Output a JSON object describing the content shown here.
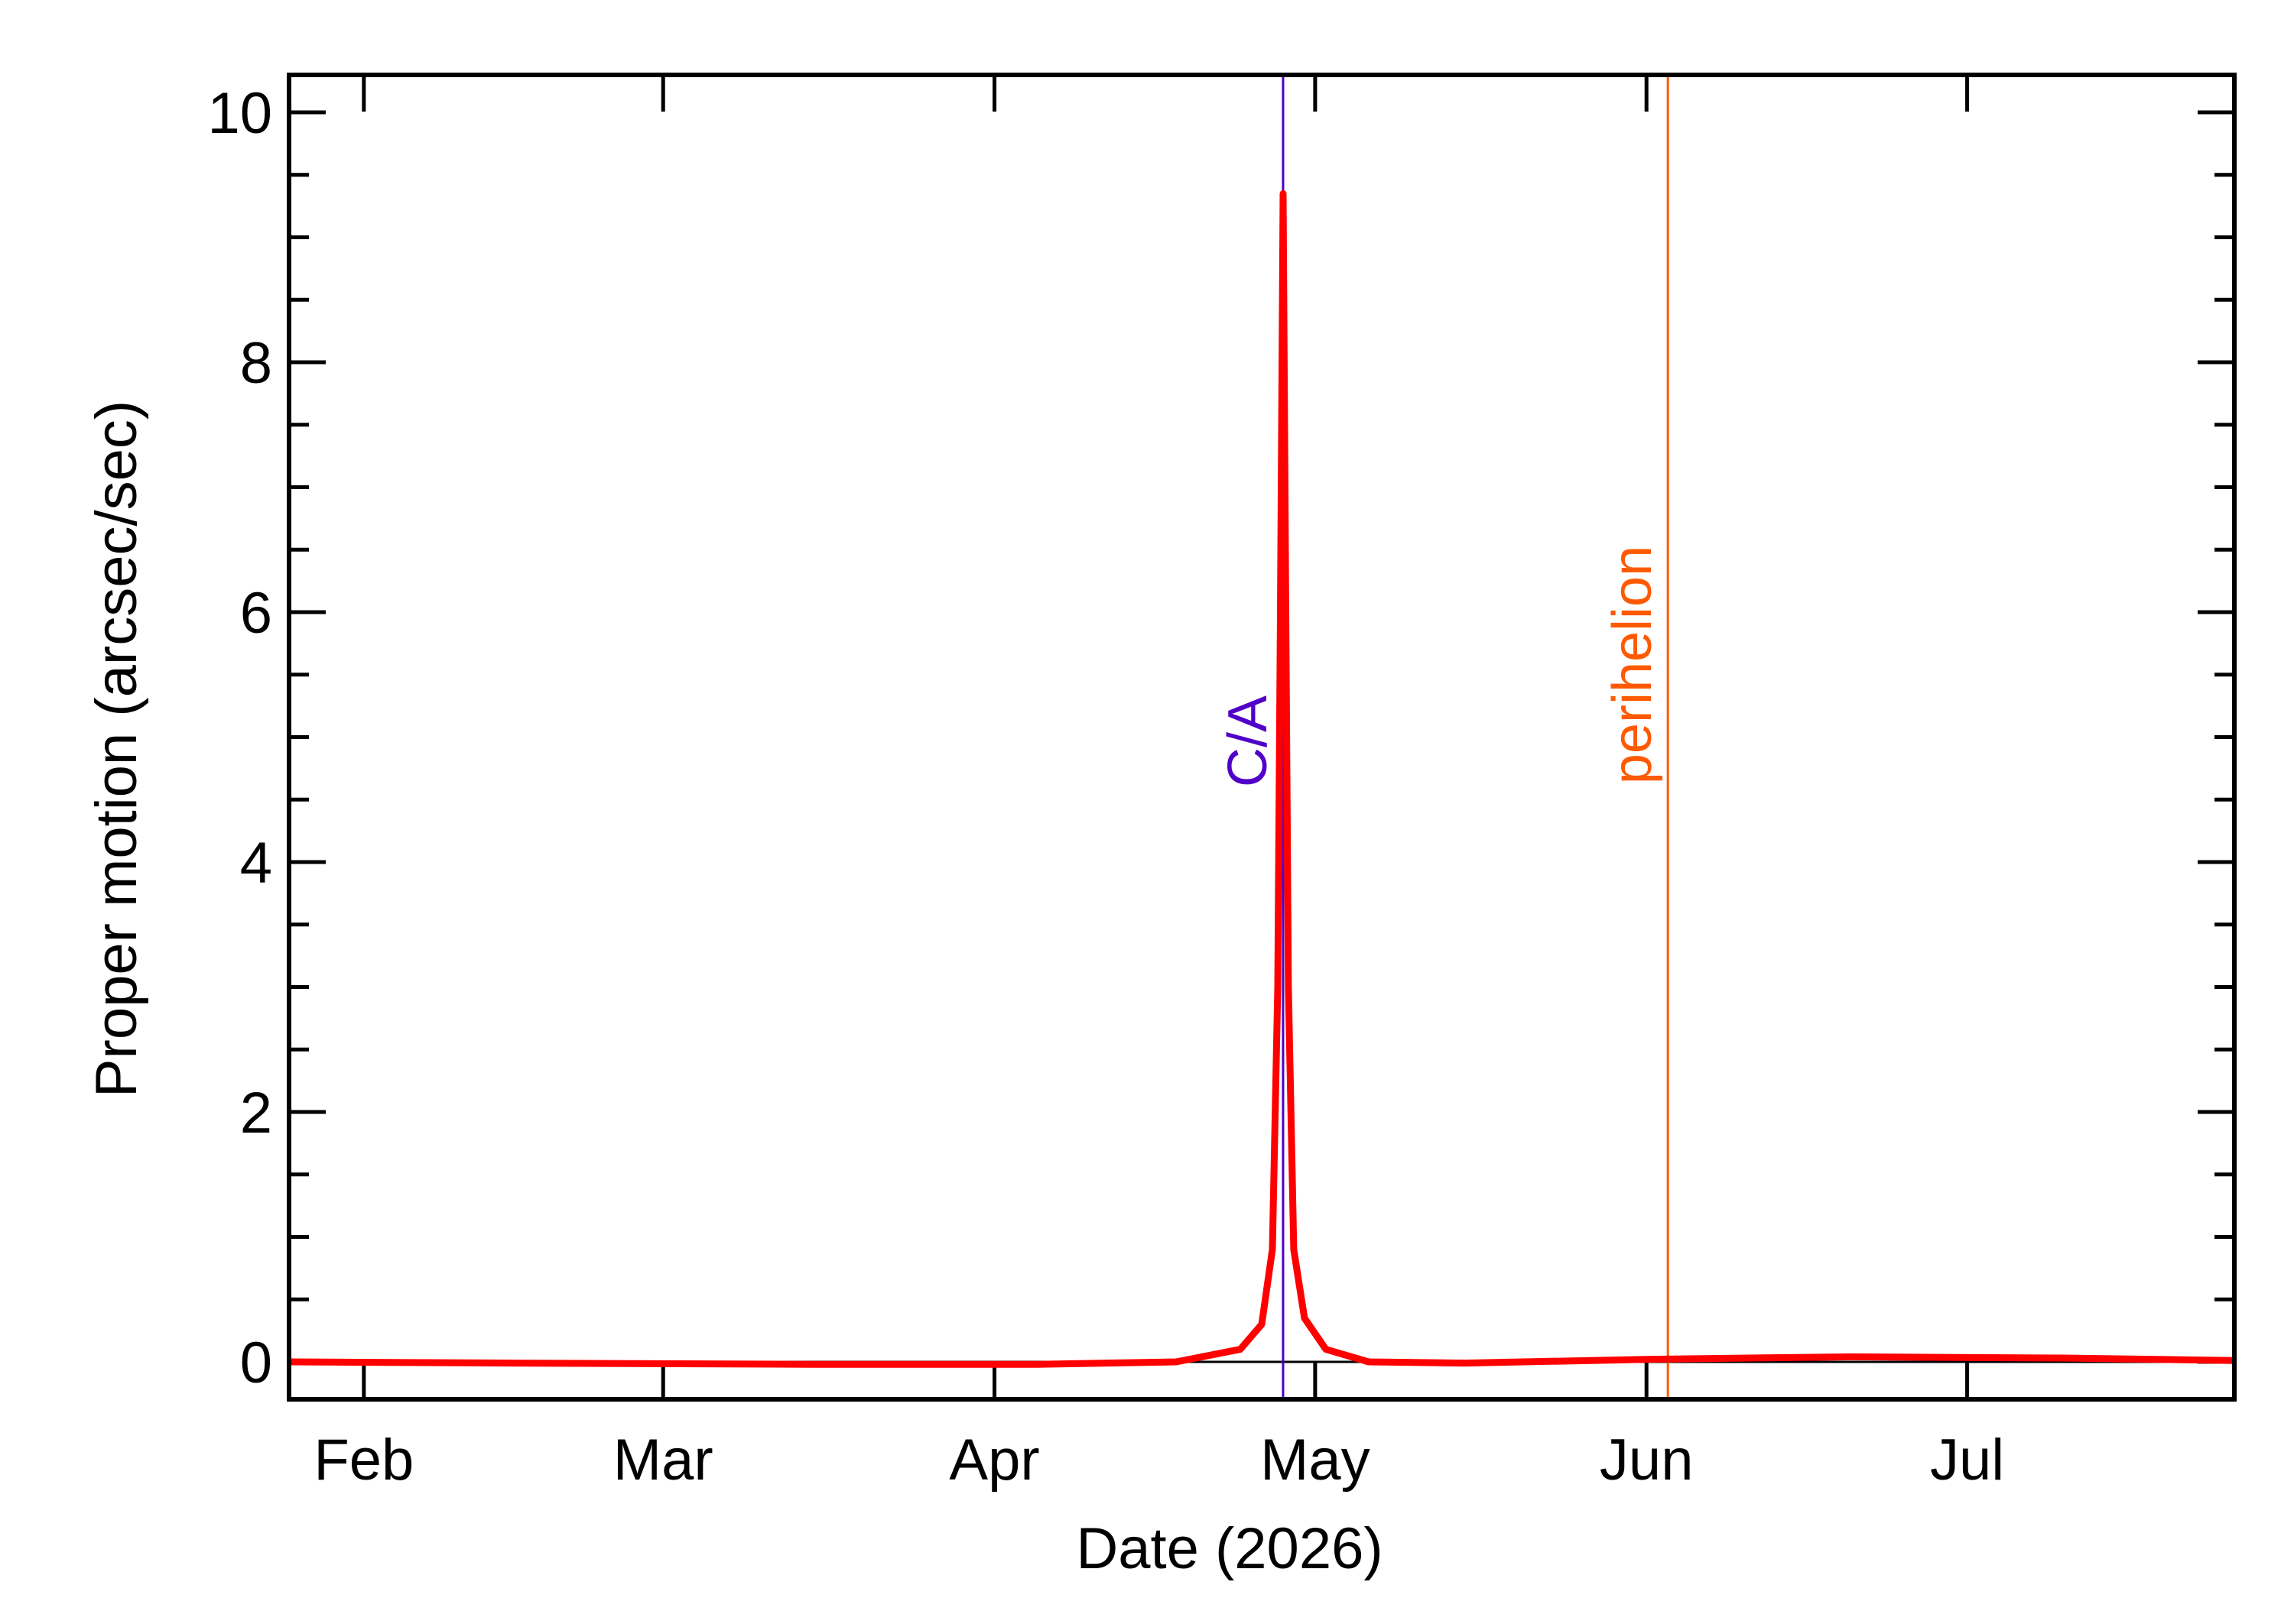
{
  "chart_data": {
    "type": "line",
    "title": "",
    "xlabel": "Date (2026)",
    "ylabel": "Proper motion (arcsec/sec)",
    "x_ticks": [
      {
        "label": "Feb",
        "date": "2026-02-01"
      },
      {
        "label": "Mar",
        "date": "2026-03-01"
      },
      {
        "label": "Apr",
        "date": "2026-04-01"
      },
      {
        "label": "May",
        "date": "2026-05-01"
      },
      {
        "label": "Jun",
        "date": "2026-06-01"
      },
      {
        "label": "Jul",
        "date": "2026-07-01"
      }
    ],
    "xlim": [
      "2026-01-25",
      "2026-07-26"
    ],
    "ylim": [
      -0.3,
      10.3
    ],
    "y_ticks": [
      0,
      2,
      4,
      6,
      8,
      10
    ],
    "grid": false,
    "colors": {
      "series": "#ff0000",
      "ca_line": "#5000c8",
      "perihelion_line": "#ff5a00",
      "axis": "#000000"
    },
    "annotations": [
      {
        "label": "C/A",
        "date": "2026-04-28",
        "color": "#5000c8"
      },
      {
        "label": "perihelion",
        "date": "2026-06-03",
        "color": "#ff5a00"
      }
    ],
    "series": [
      {
        "color": "#ff0000",
        "points": [
          {
            "x": "2026-01-25",
            "y": 0.0
          },
          {
            "x": "2026-02-15",
            "y": -0.01
          },
          {
            "x": "2026-03-15",
            "y": -0.02
          },
          {
            "x": "2026-04-05",
            "y": -0.02
          },
          {
            "x": "2026-04-18",
            "y": 0.0
          },
          {
            "x": "2026-04-24",
            "y": 0.1
          },
          {
            "x": "2026-04-26",
            "y": 0.3
          },
          {
            "x": "2026-04-27",
            "y": 0.9
          },
          {
            "x": "2026-04-27T12:00",
            "y": 3.0
          },
          {
            "x": "2026-04-27T18:00",
            "y": 6.0
          },
          {
            "x": "2026-04-28",
            "y": 9.35
          },
          {
            "x": "2026-04-28T06:00",
            "y": 6.0
          },
          {
            "x": "2026-04-28T12:00",
            "y": 3.0
          },
          {
            "x": "2026-04-29",
            "y": 0.9
          },
          {
            "x": "2026-04-30",
            "y": 0.35
          },
          {
            "x": "2026-05-02",
            "y": 0.1
          },
          {
            "x": "2026-05-06",
            "y": 0.0
          },
          {
            "x": "2026-05-15",
            "y": -0.01
          },
          {
            "x": "2026-06-01",
            "y": 0.02
          },
          {
            "x": "2026-06-20",
            "y": 0.04
          },
          {
            "x": "2026-07-10",
            "y": 0.03
          },
          {
            "x": "2026-07-26",
            "y": 0.01
          }
        ]
      }
    ]
  }
}
